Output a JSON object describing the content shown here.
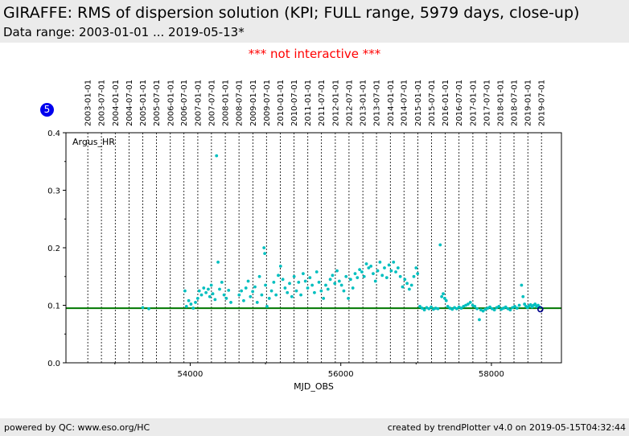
{
  "header": {
    "title": "GIRAFFE: RMS of dispersion solution (KPI; FULL range, 5979 days, close-up)",
    "subtitle": "Data range: 2003-01-01 ... 2019-05-13*"
  },
  "notice": "*** not interactive ***",
  "badge": "5",
  "footer": {
    "left": "powered by QC: www.eso.org/HC",
    "right": "created by trendPlotter v4.0 on 2019-05-15T04:32:44"
  },
  "chart_data": {
    "type": "scatter",
    "title": "",
    "xlabel": "MJD_OBS",
    "ylabel": "",
    "xlim": [
      52350,
      58930
    ],
    "ylim": [
      0.0,
      0.4
    ],
    "x_ticks": [
      54000,
      56000,
      58000
    ],
    "x_tick_labels": [
      "54000",
      "56000",
      "58000"
    ],
    "y_ticks": [
      0.0,
      0.1,
      0.2,
      0.3,
      0.4
    ],
    "y_tick_labels": [
      "0.0",
      "0.1",
      "0.2",
      "0.3",
      "0.4"
    ],
    "date_markers": [
      {
        "label": "2003-01-01",
        "mjd": 52640
      },
      {
        "label": "2003-07-01",
        "mjd": 52821
      },
      {
        "label": "2004-01-01",
        "mjd": 53005
      },
      {
        "label": "2004-07-01",
        "mjd": 53187
      },
      {
        "label": "2005-01-01",
        "mjd": 53371
      },
      {
        "label": "2005-07-01",
        "mjd": 53552
      },
      {
        "label": "2006-01-01",
        "mjd": 53736
      },
      {
        "label": "2006-07-01",
        "mjd": 53917
      },
      {
        "label": "2007-01-01",
        "mjd": 54101
      },
      {
        "label": "2007-07-01",
        "mjd": 54282
      },
      {
        "label": "2008-01-01",
        "mjd": 54466
      },
      {
        "label": "2008-07-01",
        "mjd": 54648
      },
      {
        "label": "2009-01-01",
        "mjd": 54832
      },
      {
        "label": "2009-07-01",
        "mjd": 55013
      },
      {
        "label": "2010-01-01",
        "mjd": 55197
      },
      {
        "label": "2010-07-01",
        "mjd": 55378
      },
      {
        "label": "2011-01-01",
        "mjd": 55562
      },
      {
        "label": "2011-07-01",
        "mjd": 55743
      },
      {
        "label": "2012-01-01",
        "mjd": 55927
      },
      {
        "label": "2012-07-01",
        "mjd": 56109
      },
      {
        "label": "2013-01-01",
        "mjd": 56293
      },
      {
        "label": "2013-07-01",
        "mjd": 56474
      },
      {
        "label": "2014-01-01",
        "mjd": 56658
      },
      {
        "label": "2014-07-01",
        "mjd": 56839
      },
      {
        "label": "2015-01-01",
        "mjd": 57023
      },
      {
        "label": "2015-07-01",
        "mjd": 57204
      },
      {
        "label": "2016-01-01",
        "mjd": 57388
      },
      {
        "label": "2016-07-01",
        "mjd": 57570
      },
      {
        "label": "2017-01-01",
        "mjd": 57754
      },
      {
        "label": "2017-07-01",
        "mjd": 57935
      },
      {
        "label": "2018-01-01",
        "mjd": 58119
      },
      {
        "label": "2018-07-01",
        "mjd": 58300
      },
      {
        "label": "2019-01-01",
        "mjd": 58484
      },
      {
        "label": "2019-07-01",
        "mjd": 58665
      }
    ],
    "reference_line": {
      "value": 0.095,
      "color": "#007700"
    },
    "series": [
      {
        "name": "Argus_HR",
        "color": "#00bfbf",
        "points": [
          [
            53370,
            0.096
          ],
          [
            53450,
            0.094
          ],
          [
            53930,
            0.125
          ],
          [
            53950,
            0.098
          ],
          [
            53980,
            0.108
          ],
          [
            54010,
            0.102
          ],
          [
            54040,
            0.095
          ],
          [
            54070,
            0.105
          ],
          [
            54100,
            0.112
          ],
          [
            54120,
            0.125
          ],
          [
            54150,
            0.118
          ],
          [
            54180,
            0.13
          ],
          [
            54210,
            0.122
          ],
          [
            54240,
            0.128
          ],
          [
            54260,
            0.115
          ],
          [
            54280,
            0.135
          ],
          [
            54300,
            0.12
          ],
          [
            54330,
            0.11
          ],
          [
            54350,
            0.36
          ],
          [
            54370,
            0.175
          ],
          [
            54390,
            0.128
          ],
          [
            54420,
            0.14
          ],
          [
            54450,
            0.118
          ],
          [
            54480,
            0.112
          ],
          [
            54510,
            0.126
          ],
          [
            54540,
            0.105
          ],
          [
            54650,
            0.118
          ],
          [
            54680,
            0.125
          ],
          [
            54710,
            0.108
          ],
          [
            54740,
            0.13
          ],
          [
            54770,
            0.142
          ],
          [
            54800,
            0.115
          ],
          [
            54830,
            0.124
          ],
          [
            54860,
            0.132
          ],
          [
            54890,
            0.105
          ],
          [
            54920,
            0.15
          ],
          [
            54950,
            0.118
          ],
          [
            54980,
            0.2
          ],
          [
            54990,
            0.19
          ],
          [
            55000,
            0.135
          ],
          [
            55020,
            0.098
          ],
          [
            55050,
            0.112
          ],
          [
            55080,
            0.125
          ],
          [
            55110,
            0.14
          ],
          [
            55140,
            0.118
          ],
          [
            55170,
            0.152
          ],
          [
            55200,
            0.168
          ],
          [
            55230,
            0.145
          ],
          [
            55260,
            0.13
          ],
          [
            55290,
            0.122
          ],
          [
            55320,
            0.138
          ],
          [
            55350,
            0.115
          ],
          [
            55380,
            0.15
          ],
          [
            55410,
            0.125
          ],
          [
            55440,
            0.14
          ],
          [
            55470,
            0.118
          ],
          [
            55500,
            0.155
          ],
          [
            55530,
            0.142
          ],
          [
            55560,
            0.13
          ],
          [
            55590,
            0.148
          ],
          [
            55620,
            0.135
          ],
          [
            55650,
            0.122
          ],
          [
            55680,
            0.158
          ],
          [
            55710,
            0.14
          ],
          [
            55740,
            0.125
          ],
          [
            55770,
            0.112
          ],
          [
            55800,
            0.135
          ],
          [
            55830,
            0.128
          ],
          [
            55860,
            0.145
          ],
          [
            55890,
            0.152
          ],
          [
            55920,
            0.138
          ],
          [
            55950,
            0.16
          ],
          [
            55980,
            0.142
          ],
          [
            56010,
            0.135
          ],
          [
            56040,
            0.125
          ],
          [
            56070,
            0.15
          ],
          [
            56100,
            0.112
          ],
          [
            56130,
            0.145
          ],
          [
            56160,
            0.13
          ],
          [
            56190,
            0.155
          ],
          [
            56220,
            0.148
          ],
          [
            56250,
            0.162
          ],
          [
            56280,
            0.158
          ],
          [
            56310,
            0.15
          ],
          [
            56340,
            0.172
          ],
          [
            56370,
            0.165
          ],
          [
            56400,
            0.168
          ],
          [
            56430,
            0.155
          ],
          [
            56460,
            0.142
          ],
          [
            56490,
            0.16
          ],
          [
            56520,
            0.175
          ],
          [
            56550,
            0.152
          ],
          [
            56580,
            0.165
          ],
          [
            56610,
            0.148
          ],
          [
            56640,
            0.17
          ],
          [
            56670,
            0.16
          ],
          [
            56700,
            0.175
          ],
          [
            56730,
            0.158
          ],
          [
            56760,
            0.165
          ],
          [
            56790,
            0.15
          ],
          [
            56820,
            0.132
          ],
          [
            56850,
            0.145
          ],
          [
            56880,
            0.138
          ],
          [
            56910,
            0.128
          ],
          [
            56940,
            0.135
          ],
          [
            56970,
            0.15
          ],
          [
            57000,
            0.165
          ],
          [
            57020,
            0.155
          ],
          [
            57050,
            0.098
          ],
          [
            57080,
            0.095
          ],
          [
            57110,
            0.092
          ],
          [
            57140,
            0.096
          ],
          [
            57170,
            0.094
          ],
          [
            57200,
            0.097
          ],
          [
            57230,
            0.093
          ],
          [
            57260,
            0.095
          ],
          [
            57290,
            0.094
          ],
          [
            57320,
            0.205
          ],
          [
            57340,
            0.115
          ],
          [
            57360,
            0.12
          ],
          [
            57380,
            0.112
          ],
          [
            57400,
            0.108
          ],
          [
            57420,
            0.098
          ],
          [
            57450,
            0.095
          ],
          [
            57480,
            0.093
          ],
          [
            57510,
            0.096
          ],
          [
            57540,
            0.094
          ],
          [
            57570,
            0.097
          ],
          [
            57600,
            0.095
          ],
          [
            57630,
            0.098
          ],
          [
            57660,
            0.1
          ],
          [
            57690,
            0.102
          ],
          [
            57720,
            0.105
          ],
          [
            57750,
            0.1
          ],
          [
            57780,
            0.098
          ],
          [
            57810,
            0.094
          ],
          [
            57840,
            0.075
          ],
          [
            57860,
            0.092
          ],
          [
            57890,
            0.09
          ],
          [
            57920,
            0.093
          ],
          [
            57950,
            0.095
          ],
          [
            57980,
            0.097
          ],
          [
            58010,
            0.094
          ],
          [
            58040,
            0.092
          ],
          [
            58070,
            0.096
          ],
          [
            58100,
            0.098
          ],
          [
            58130,
            0.093
          ],
          [
            58160,
            0.095
          ],
          [
            58190,
            0.097
          ],
          [
            58220,
            0.094
          ],
          [
            58250,
            0.092
          ],
          [
            58280,
            0.096
          ],
          [
            58310,
            0.098
          ],
          [
            58340,
            0.095
          ],
          [
            58370,
            0.1
          ],
          [
            58400,
            0.135
          ],
          [
            58420,
            0.115
          ],
          [
            58440,
            0.102
          ],
          [
            58460,
            0.098
          ],
          [
            58480,
            0.096
          ],
          [
            58500,
            0.099
          ],
          [
            58520,
            0.101
          ],
          [
            58540,
            0.097
          ],
          [
            58560,
            0.1
          ],
          [
            58580,
            0.102
          ],
          [
            58600,
            0.098
          ],
          [
            58620,
            0.1
          ],
          [
            58640,
            0.097
          ]
        ]
      }
    ],
    "last_point": {
      "x": 58650,
      "y": 0.093,
      "color": "#00008b"
    }
  }
}
